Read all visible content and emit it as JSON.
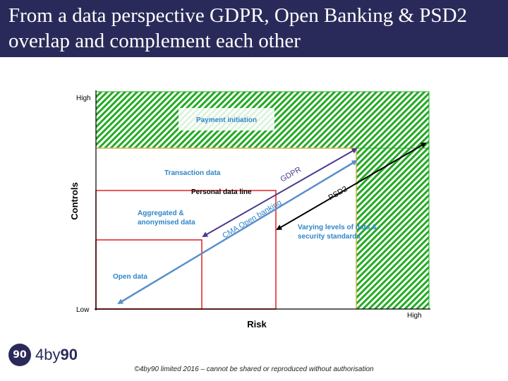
{
  "title": "From a data perspective GDPR, Open Banking & PSD2 overlap and complement each other",
  "diagram": {
    "y_axis_label": "Controls",
    "x_axis_label": "Risk",
    "y_high": "High",
    "y_low": "Low",
    "x_high": "High",
    "zones": {
      "payment_initiation": "Payment initiation",
      "transaction_data": "Transaction data",
      "personal_data_line": "Personal data line",
      "aggregated": [
        "Aggregated &",
        "anonymised data"
      ],
      "open_data": "Open data",
      "varying_levels": [
        "Varying levels of data &",
        "security standards"
      ]
    },
    "arrows": {
      "gdpr": "GDPR",
      "psd2": "PSD2",
      "cma": "CMA Open banking"
    },
    "colors": {
      "hatch_green": "#22aa22",
      "zone_text": "#2f86c8",
      "red_box": "#e02020",
      "gdpr_arrow": "#4a3a8c",
      "cma_arrow": "#5b8fc7",
      "psd2_arrow": "#000000",
      "gold_border": "#d4b24a"
    }
  },
  "logo": {
    "mark": "90",
    "text_prefix": "4by",
    "text_suffix": "90"
  },
  "footer": "©4by90 limited  2016 – cannot be shared or reproduced without authorisation"
}
